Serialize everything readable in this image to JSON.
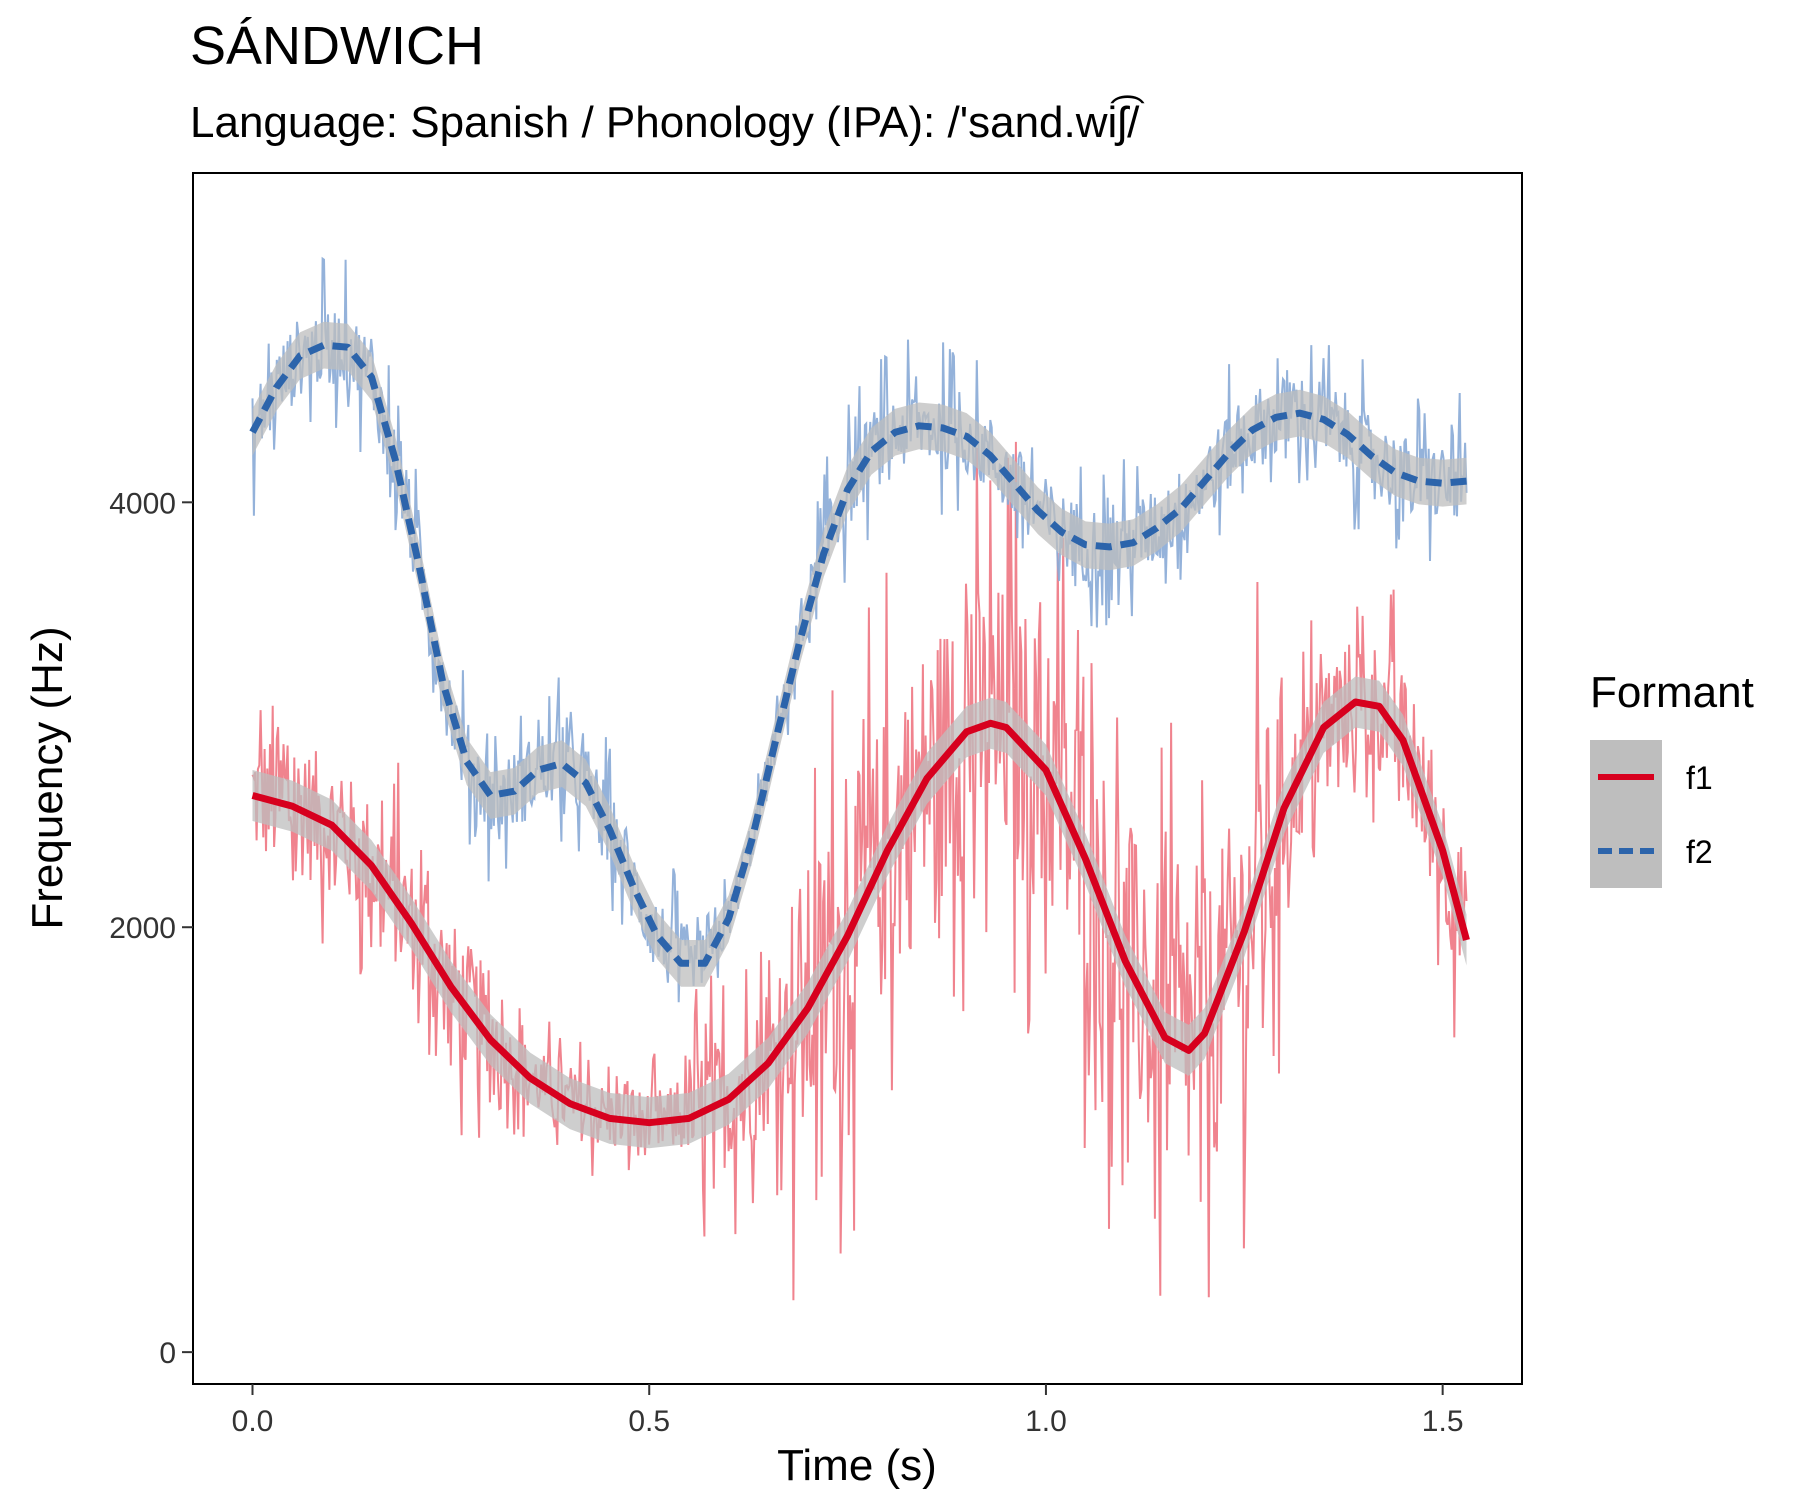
{
  "chart_data": {
    "type": "line",
    "title": "SÁNDWICH",
    "subtitle": "Language: Spanish / Phonology (IPA): /'sand.wiʃ͡/",
    "xlabel": "Time (s)",
    "ylabel": "Frequency (Hz)",
    "xlim": [
      -0.075,
      1.6
    ],
    "ylim": [
      -150,
      5550
    ],
    "x_ticks": [
      0.0,
      0.5,
      1.0,
      1.5
    ],
    "x_tick_labels": [
      "0.0",
      "0.5",
      "1.0",
      "1.5"
    ],
    "y_ticks": [
      0,
      2000,
      4000
    ],
    "y_tick_labels": [
      "0",
      "2000",
      "4000"
    ],
    "grid": false,
    "legend": {
      "title": "Formant",
      "position": "right",
      "entries": [
        {
          "label": "f1",
          "color": "#D7001E",
          "line": "solid"
        },
        {
          "label": "f2",
          "color": "#2C64AB",
          "line": "dashed"
        }
      ]
    },
    "raw_colors": {
      "f1": "#EE7682",
      "f2": "#88AAD6"
    },
    "band_color": "#BEBEBE",
    "series": [
      {
        "name": "f1",
        "x": [
          0.0,
          0.05,
          0.1,
          0.15,
          0.2,
          0.25,
          0.3,
          0.35,
          0.4,
          0.45,
          0.5,
          0.55,
          0.6,
          0.65,
          0.7,
          0.75,
          0.8,
          0.85,
          0.9,
          0.93,
          0.95,
          1.0,
          1.05,
          1.1,
          1.15,
          1.18,
          1.2,
          1.25,
          1.3,
          1.35,
          1.39,
          1.42,
          1.45,
          1.5,
          1.53
        ],
        "y": [
          2620,
          2570,
          2480,
          2290,
          2020,
          1720,
          1470,
          1290,
          1170,
          1100,
          1080,
          1100,
          1190,
          1360,
          1620,
          1960,
          2360,
          2700,
          2920,
          2960,
          2940,
          2740,
          2320,
          1840,
          1480,
          1420,
          1500,
          1980,
          2560,
          2940,
          3060,
          3040,
          2880,
          2360,
          1940
        ],
        "ci": 120
      },
      {
        "name": "f2",
        "x": [
          0.0,
          0.03,
          0.06,
          0.09,
          0.12,
          0.15,
          0.18,
          0.21,
          0.24,
          0.27,
          0.3,
          0.33,
          0.36,
          0.39,
          0.42,
          0.45,
          0.48,
          0.51,
          0.54,
          0.57,
          0.6,
          0.63,
          0.66,
          0.69,
          0.72,
          0.75,
          0.78,
          0.81,
          0.84,
          0.87,
          0.9,
          0.93,
          0.96,
          0.99,
          1.02,
          1.05,
          1.08,
          1.11,
          1.14,
          1.17,
          1.2,
          1.23,
          1.26,
          1.29,
          1.32,
          1.35,
          1.38,
          1.41,
          1.44,
          1.47,
          1.5,
          1.53
        ],
        "y": [
          4330,
          4540,
          4690,
          4740,
          4730,
          4590,
          4200,
          3700,
          3150,
          2780,
          2620,
          2640,
          2740,
          2770,
          2680,
          2460,
          2190,
          1960,
          1830,
          1830,
          2040,
          2420,
          2890,
          3350,
          3760,
          4060,
          4240,
          4330,
          4360,
          4350,
          4310,
          4220,
          4090,
          3960,
          3860,
          3800,
          3790,
          3810,
          3880,
          3970,
          4100,
          4230,
          4340,
          4400,
          4420,
          4390,
          4320,
          4220,
          4140,
          4100,
          4090,
          4100
        ],
        "ci": 110
      }
    ]
  }
}
